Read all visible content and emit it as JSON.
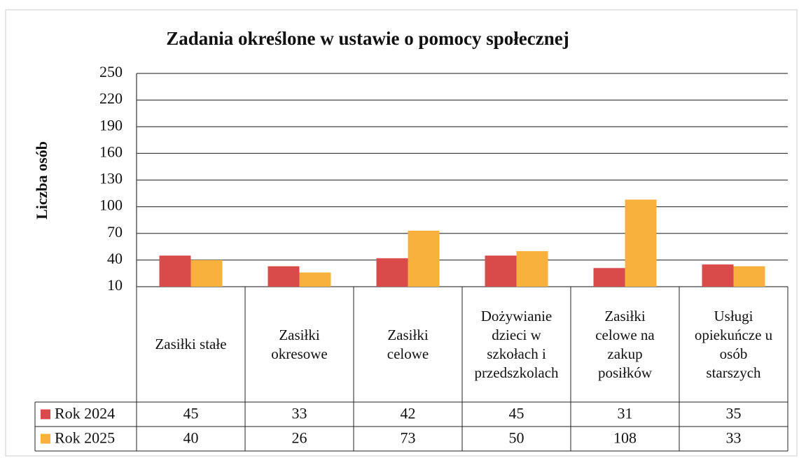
{
  "chart_data": {
    "type": "bar",
    "title": "Zadania określone w ustawie o pomocy społecznej",
    "ylabel": "Liczba osób",
    "categories": [
      "Zasiłki stałe",
      "Zasiłki okresowe",
      "Zasiłki celowe",
      "Dożywianie dzieci w szkołach i przedszkolach",
      "Zasiłki celowe na zakup posiłków",
      "Usługi opiekuńcze u osób starszych"
    ],
    "series": [
      {
        "name": "Rok 2024",
        "color": "#d94a4a",
        "values": [
          45,
          33,
          42,
          45,
          31,
          35
        ]
      },
      {
        "name": "Rok 2025",
        "color": "#f8b13c",
        "values": [
          40,
          26,
          73,
          50,
          108,
          33
        ]
      }
    ],
    "ylim": [
      10,
      250
    ],
    "yticks": [
      10,
      40,
      70,
      100,
      130,
      160,
      190,
      220,
      250
    ],
    "grid": true,
    "data_table": true
  }
}
